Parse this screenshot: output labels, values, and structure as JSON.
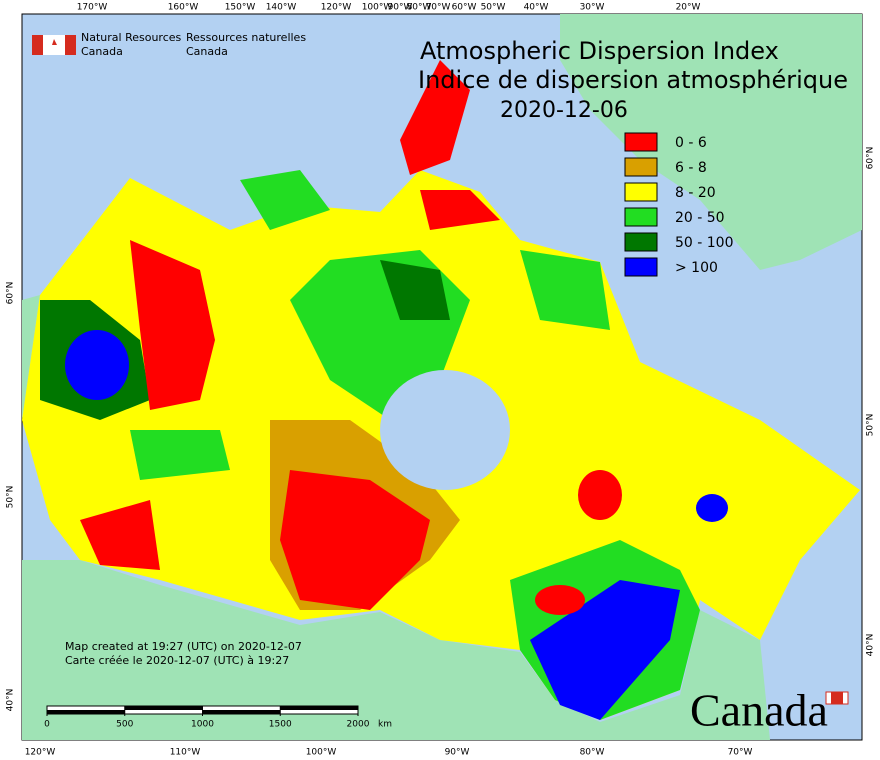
{
  "header": {
    "agency_en": [
      "Natural Resources",
      "Canada"
    ],
    "agency_fr": [
      "Ressources naturelles",
      "Canada"
    ]
  },
  "title": [
    "Atmospheric Dispersion Index",
    "Indice de dispersion atmosphérique"
  ],
  "date": "2020-12-06",
  "legend": [
    {
      "label": "0 - 6",
      "color": "#ff0000"
    },
    {
      "label": "6 - 8",
      "color": "#d9a000"
    },
    {
      "label": "8 - 20",
      "color": "#ffff00"
    },
    {
      "label": "20 - 50",
      "color": "#22dd22"
    },
    {
      "label": "50 - 100",
      "color": "#007700"
    },
    {
      "label": "> 100",
      "color": "#0000ff"
    }
  ],
  "graticule": {
    "top": [
      "170°W",
      "160°W",
      "150°W",
      "140°W",
      "120°W",
      "100°W",
      "90°W",
      "80°W",
      "70°W",
      "60°W",
      "50°W",
      "40°W",
      "30°W",
      "20°W"
    ],
    "bottom": [
      "120°W",
      "110°W",
      "100°W",
      "90°W",
      "80°W",
      "70°W"
    ],
    "left": [
      "60°N",
      "50°N",
      "40°N"
    ],
    "right": [
      "60°N",
      "50°N",
      "40°N"
    ]
  },
  "footer": [
    "Map created at 19:27 (UTC) on 2020-12-07",
    "Carte créée le 2020-12-07 (UTC) à 19:27"
  ],
  "scale_bar": {
    "ticks": [
      0,
      500,
      1000,
      1500,
      2000
    ],
    "unit": "km"
  },
  "wordmark": "Canada"
}
